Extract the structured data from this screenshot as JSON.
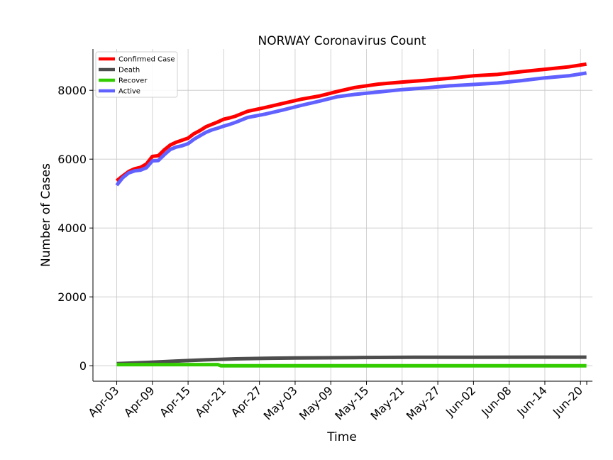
{
  "chart_data": {
    "type": "line",
    "title": "NORWAY Coronavirus Count",
    "xlabel": "Time",
    "ylabel": "Number of Cases",
    "x_tick_labels": [
      "Apr-03",
      "Apr-09",
      "Apr-15",
      "Apr-21",
      "Apr-27",
      "May-03",
      "May-09",
      "May-15",
      "May-21",
      "May-27",
      "Jun-02",
      "Jun-08",
      "Jun-14",
      "Jun-20"
    ],
    "y_ticks": [
      0,
      2000,
      4000,
      6000,
      8000
    ],
    "ylim": [
      -450,
      9200
    ],
    "x_day_range": [
      -4,
      80
    ],
    "grid": true,
    "legend_position": "upper-left",
    "series": [
      {
        "name": "Confirmed Case",
        "color": "#ff0000",
        "x": [
          0,
          1,
          2,
          3,
          4,
          5,
          6,
          7,
          8,
          9,
          10,
          11,
          12,
          13,
          14,
          15,
          16,
          17,
          18,
          19,
          20,
          22,
          25,
          28,
          31,
          34,
          37,
          40,
          44,
          48,
          52,
          56,
          60,
          64,
          68,
          72,
          76,
          79
        ],
        "y": [
          5370,
          5510,
          5640,
          5720,
          5760,
          5860,
          6080,
          6100,
          6270,
          6410,
          6490,
          6550,
          6610,
          6740,
          6830,
          6940,
          7010,
          7080,
          7160,
          7200,
          7250,
          7390,
          7500,
          7620,
          7740,
          7830,
          7960,
          8080,
          8180,
          8240,
          8290,
          8350,
          8420,
          8460,
          8540,
          8610,
          8680,
          8760
        ]
      },
      {
        "name": "Death",
        "color": "#4d4d4d",
        "x": [
          0,
          5,
          10,
          15,
          20,
          25,
          30,
          40,
          50,
          60,
          70,
          79
        ],
        "y": [
          62,
          95,
          135,
          170,
          200,
          215,
          224,
          236,
          244,
          247,
          249,
          250
        ]
      },
      {
        "name": "Recover",
        "color": "#33cc00",
        "x": [
          0,
          17,
          17.5,
          79
        ],
        "y": [
          32,
          32,
          0,
          0
        ]
      },
      {
        "name": "Active",
        "color": "#6161ff",
        "x": [
          0,
          1,
          2,
          3,
          4,
          5,
          6,
          7,
          8,
          9,
          10,
          11,
          12,
          13,
          14,
          15,
          16,
          17,
          18,
          19,
          20,
          22,
          25,
          28,
          31,
          34,
          37,
          40,
          44,
          48,
          52,
          56,
          60,
          64,
          68,
          72,
          76,
          79
        ],
        "y": [
          5240,
          5460,
          5600,
          5660,
          5680,
          5750,
          5950,
          5960,
          6130,
          6280,
          6350,
          6390,
          6450,
          6580,
          6680,
          6780,
          6850,
          6900,
          6960,
          7010,
          7070,
          7210,
          7310,
          7430,
          7560,
          7680,
          7810,
          7880,
          7950,
          8020,
          8070,
          8130,
          8170,
          8210,
          8280,
          8360,
          8420,
          8500
        ]
      }
    ]
  }
}
